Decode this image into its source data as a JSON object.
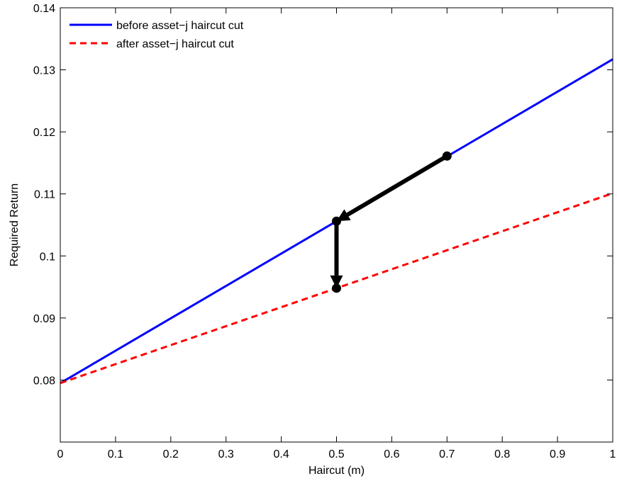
{
  "chart_data": {
    "type": "line",
    "xlabel": "Haircut (m)",
    "ylabel": "Required Return",
    "xlim": [
      0,
      1
    ],
    "ylim": [
      0.07,
      0.14
    ],
    "xticks": [
      0,
      0.1,
      0.2,
      0.3,
      0.4,
      0.5,
      0.6,
      0.7,
      0.8,
      0.9,
      1
    ],
    "xtick_labels": [
      "0",
      "0.1",
      "0.2",
      "0.3",
      "0.4",
      "0.5",
      "0.6",
      "0.7",
      "0.8",
      "0.9",
      "1"
    ],
    "yticks": [
      0.08,
      0.09,
      0.1,
      0.11,
      0.12,
      0.13,
      0.14
    ],
    "ytick_labels": [
      "0.08",
      "0.09",
      "0.1",
      "0.11",
      "0.12",
      "0.13",
      "0.14"
    ],
    "grid": false,
    "legend_position": "top-left",
    "series": [
      {
        "name": "before asset−j haircut cut",
        "color": "#0000ff",
        "style": "solid",
        "x": [
          0,
          1
        ],
        "y": [
          0.0795,
          0.1317
        ]
      },
      {
        "name": "after asset−j haircut cut",
        "color": "#ff0000",
        "style": "dashed",
        "x": [
          0,
          1
        ],
        "y": [
          0.0795,
          0.1101
        ]
      }
    ],
    "annotations": {
      "points": [
        {
          "x": 0.7,
          "y": 0.1161
        },
        {
          "x": 0.5,
          "y": 0.1056
        },
        {
          "x": 0.5,
          "y": 0.0948
        }
      ],
      "arrows": [
        {
          "from": [
            0.7,
            0.1161
          ],
          "to": [
            0.5,
            0.1056
          ]
        },
        {
          "from": [
            0.5,
            0.1056
          ],
          "to": [
            0.5,
            0.0948
          ]
        }
      ],
      "color": "#000000"
    }
  }
}
